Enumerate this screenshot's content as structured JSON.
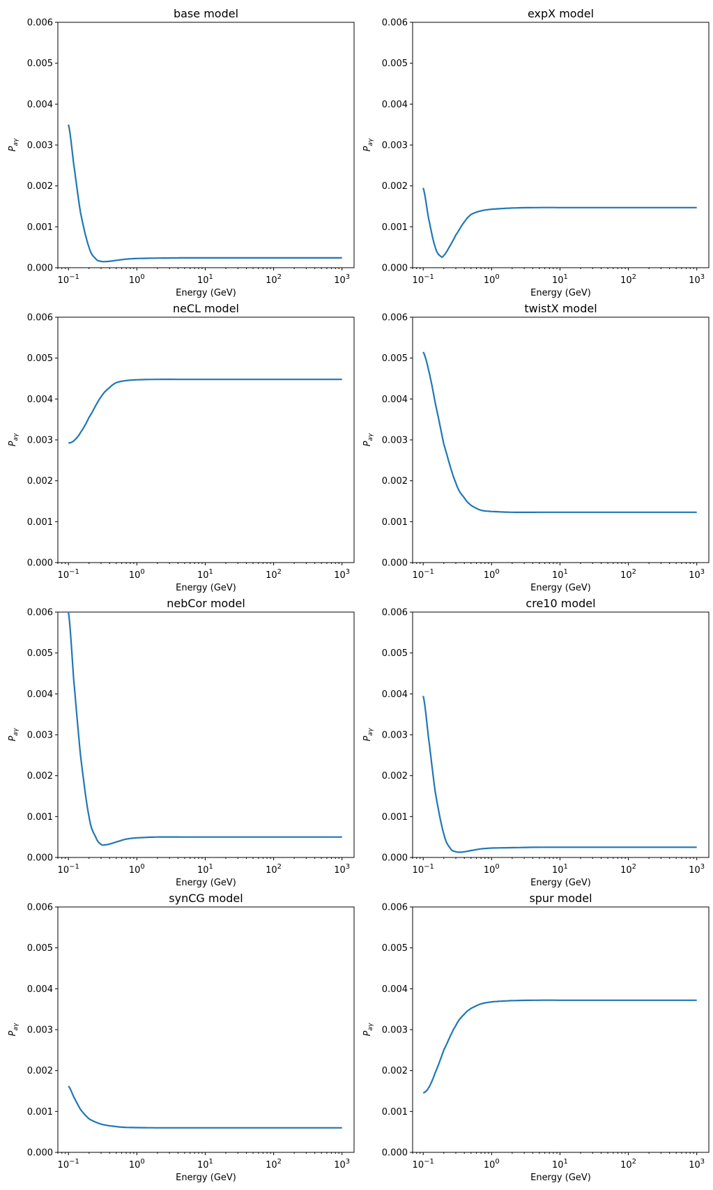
{
  "chart_data": [
    {
      "type": "line",
      "title": "base model",
      "xlabel": "Energy (GeV)",
      "ylabel": "P_aγ",
      "xscale": "log",
      "xlim": [
        0.07,
        1500
      ],
      "ylim": [
        0,
        0.006
      ],
      "x": [
        0.1,
        0.12,
        0.15,
        0.2,
        0.25,
        0.3,
        0.35,
        0.4,
        0.5,
        0.7,
        1,
        2,
        5,
        10,
        100,
        1000
      ],
      "series": [
        {
          "values": [
            0.0035,
            0.0025,
            0.00135,
            0.0005,
            0.00022,
            0.000155,
            0.00015,
            0.000158,
            0.00018,
            0.00021,
            0.000225,
            0.000235,
            0.00024,
            0.00024,
            0.00024,
            0.00024
          ]
        }
      ]
    },
    {
      "type": "line",
      "title": "expX model",
      "xlabel": "Energy (GeV)",
      "ylabel": "P_aγ",
      "xscale": "log",
      "xlim": [
        0.07,
        1500
      ],
      "ylim": [
        0,
        0.006
      ],
      "x": [
        0.1,
        0.12,
        0.15,
        0.18,
        0.2,
        0.25,
        0.3,
        0.4,
        0.5,
        0.7,
        1,
        2,
        5,
        10,
        100,
        1000
      ],
      "series": [
        {
          "values": [
            0.00195,
            0.0012,
            0.0005,
            0.00028,
            0.0003,
            0.00055,
            0.0008,
            0.00112,
            0.0013,
            0.00139,
            0.00143,
            0.00146,
            0.00147,
            0.00147,
            0.00147,
            0.00147
          ]
        }
      ]
    },
    {
      "type": "line",
      "title": "neCL model",
      "xlabel": "Energy (GeV)",
      "ylabel": "P_aγ",
      "xscale": "log",
      "xlim": [
        0.07,
        1500
      ],
      "ylim": [
        0,
        0.006
      ],
      "x": [
        0.1,
        0.12,
        0.15,
        0.2,
        0.3,
        0.4,
        0.5,
        0.7,
        1,
        2,
        5,
        10,
        100,
        1000
      ],
      "series": [
        {
          "values": [
            0.00292,
            0.00298,
            0.00318,
            0.00355,
            0.00405,
            0.00428,
            0.0044,
            0.00445,
            0.00447,
            0.00448,
            0.00448,
            0.00448,
            0.00448,
            0.00448
          ]
        }
      ]
    },
    {
      "type": "line",
      "title": "twistX model",
      "xlabel": "Energy (GeV)",
      "ylabel": "P_aγ",
      "xscale": "log",
      "xlim": [
        0.07,
        1500
      ],
      "ylim": [
        0,
        0.006
      ],
      "x": [
        0.1,
        0.12,
        0.15,
        0.2,
        0.3,
        0.4,
        0.5,
        0.7,
        1,
        2,
        5,
        10,
        100,
        1000
      ],
      "series": [
        {
          "values": [
            0.00515,
            0.0047,
            0.0039,
            0.0029,
            0.00195,
            0.00158,
            0.0014,
            0.00128,
            0.00125,
            0.00123,
            0.00123,
            0.00123,
            0.00123,
            0.00123
          ]
        }
      ]
    },
    {
      "type": "line",
      "title": "nebCor model",
      "xlabel": "Energy (GeV)",
      "ylabel": "P_aγ",
      "xscale": "log",
      "xlim": [
        0.07,
        1500
      ],
      "ylim": [
        0,
        0.006
      ],
      "x": [
        0.1,
        0.12,
        0.15,
        0.2,
        0.25,
        0.3,
        0.35,
        0.4,
        0.5,
        0.7,
        1,
        2,
        5,
        10,
        100,
        1000
      ],
      "series": [
        {
          "values": [
            0.006,
            0.0043,
            0.0025,
            0.001,
            0.0005,
            0.00032,
            0.00031,
            0.00033,
            0.00038,
            0.00045,
            0.00048,
            0.0005,
            0.0005,
            0.0005,
            0.0005,
            0.0005
          ]
        }
      ]
    },
    {
      "type": "line",
      "title": "cre10 model",
      "xlabel": "Energy (GeV)",
      "ylabel": "P_aγ",
      "xscale": "log",
      "xlim": [
        0.07,
        1500
      ],
      "ylim": [
        0,
        0.006
      ],
      "x": [
        0.1,
        0.12,
        0.15,
        0.2,
        0.25,
        0.3,
        0.35,
        0.4,
        0.5,
        0.7,
        1,
        2,
        5,
        10,
        100,
        1000
      ],
      "series": [
        {
          "values": [
            0.00395,
            0.0029,
            0.0016,
            0.00058,
            0.00022,
            0.00014,
            0.00013,
            0.00014,
            0.00017,
            0.00021,
            0.00023,
            0.00024,
            0.00025,
            0.00025,
            0.00025,
            0.00025
          ]
        }
      ]
    },
    {
      "type": "line",
      "title": "synCG model",
      "xlabel": "Energy (GeV)",
      "ylabel": "P_aγ",
      "xscale": "log",
      "xlim": [
        0.07,
        1500
      ],
      "ylim": [
        0,
        0.006
      ],
      "x": [
        0.1,
        0.12,
        0.15,
        0.2,
        0.3,
        0.5,
        0.7,
        1,
        2,
        5,
        10,
        100,
        1000
      ],
      "series": [
        {
          "values": [
            0.00162,
            0.00135,
            0.00105,
            0.00082,
            0.00069,
            0.00063,
            0.00061,
            0.000605,
            0.0006,
            0.0006,
            0.0006,
            0.0006,
            0.0006
          ]
        }
      ]
    },
    {
      "type": "line",
      "title": "spur model",
      "xlabel": "Energy (GeV)",
      "ylabel": "P_aγ",
      "xscale": "log",
      "xlim": [
        0.07,
        1500
      ],
      "ylim": [
        0,
        0.006
      ],
      "x": [
        0.1,
        0.12,
        0.15,
        0.2,
        0.3,
        0.4,
        0.5,
        0.7,
        1,
        2,
        5,
        10,
        100,
        1000
      ],
      "series": [
        {
          "values": [
            0.00145,
            0.00158,
            0.00195,
            0.0025,
            0.0031,
            0.00338,
            0.00352,
            0.00363,
            0.00368,
            0.00371,
            0.00372,
            0.00372,
            0.00372,
            0.00372
          ]
        }
      ]
    }
  ],
  "style": {
    "line_color": "#1f77b4",
    "axis_color": "#000000",
    "background": "#ffffff"
  },
  "axis_text": {
    "y_ticks": [
      "0.000",
      "0.001",
      "0.002",
      "0.003",
      "0.004",
      "0.005",
      "0.006"
    ],
    "x_tick_base": "10",
    "x_tick_exponents": [
      "−1",
      "0",
      "1",
      "2",
      "3"
    ],
    "ylabel_main": "P",
    "ylabel_sub": "aγ"
  }
}
